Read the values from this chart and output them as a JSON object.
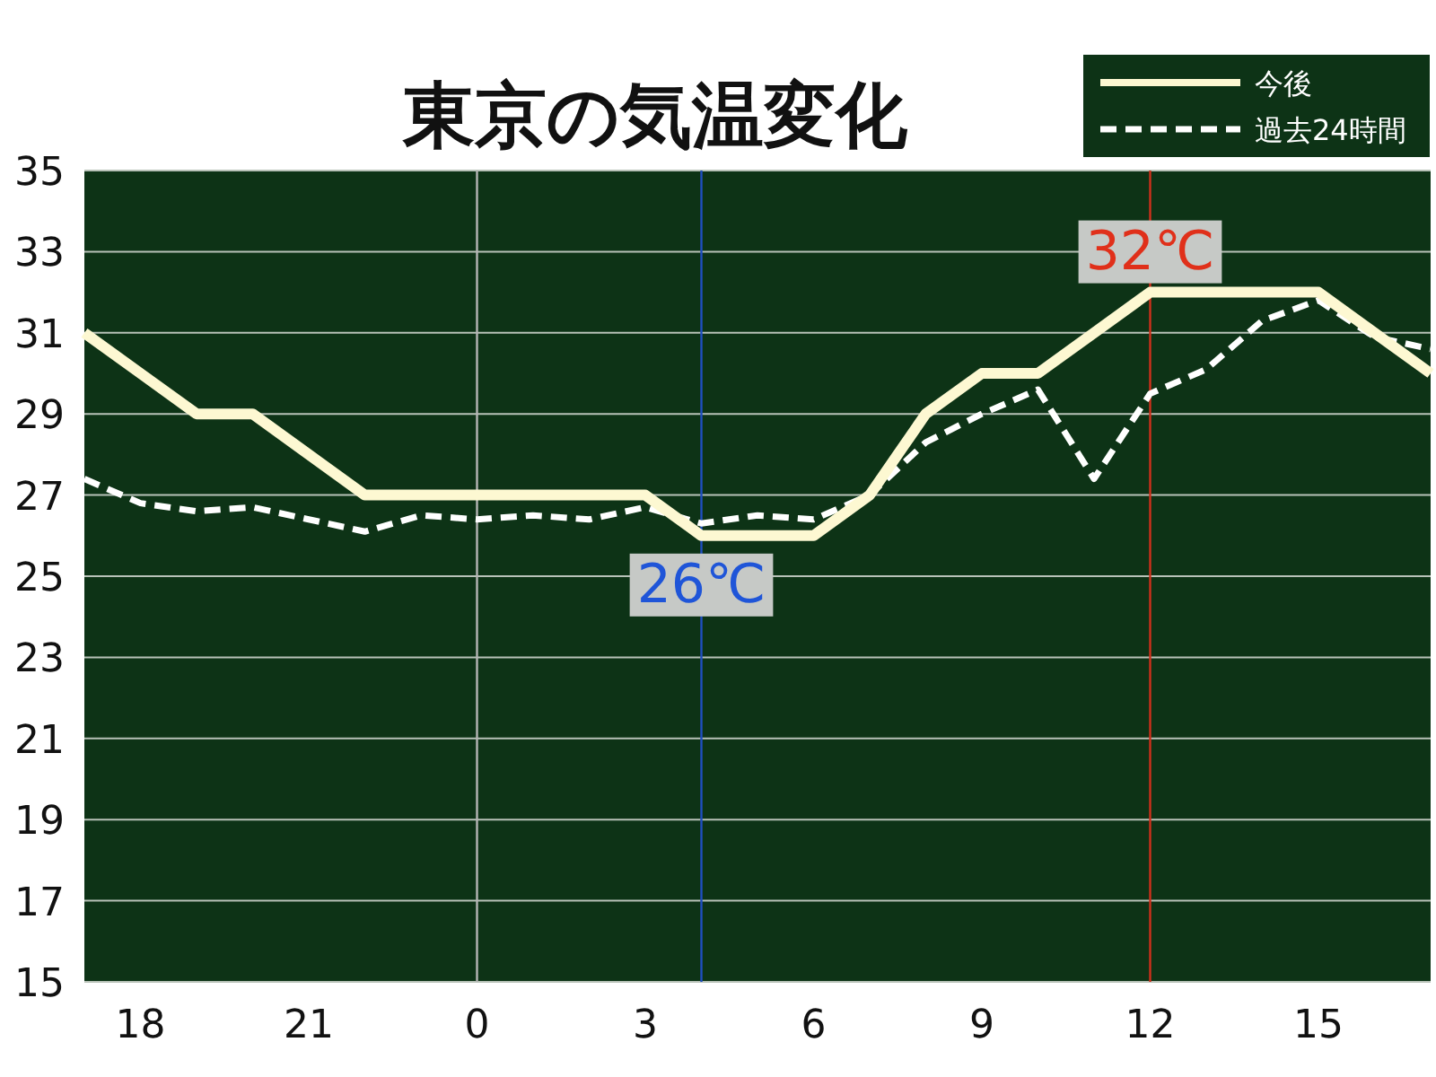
{
  "chart_data": {
    "type": "line",
    "title": "東京の気温変化",
    "categories": [
      null,
      "18",
      null,
      null,
      "21",
      null,
      null,
      "0",
      null,
      null,
      "3",
      null,
      null,
      "6",
      null,
      null,
      "9",
      null,
      null,
      "12",
      null,
      null,
      "15",
      null,
      null
    ],
    "series": [
      {
        "name": "今後",
        "color": "#fdf8d2",
        "line_style": "solid",
        "values": [
          31,
          30,
          29,
          29,
          28,
          27,
          27,
          27,
          27,
          27,
          27,
          26,
          26,
          26,
          27,
          29,
          30,
          30,
          31,
          32,
          32,
          32,
          32,
          31,
          30
        ]
      },
      {
        "name": "過去24時間",
        "color": "#ffffff",
        "line_style": "dashed",
        "values": [
          27.4,
          26.8,
          26.6,
          26.7,
          26.4,
          26.1,
          26.5,
          26.4,
          26.5,
          26.4,
          26.7,
          26.3,
          26.5,
          26.4,
          27.0,
          28.3,
          29.0,
          29.6,
          27.4,
          29.5,
          30.1,
          31.3,
          31.8,
          30.9,
          30.6
        ]
      }
    ],
    "ylim": [
      15,
      35
    ],
    "yticks": [
      15,
      17,
      19,
      21,
      23,
      25,
      27,
      29,
      31,
      33,
      35
    ],
    "grid": "y",
    "legend": "top right",
    "ref_lines": [
      {
        "axis": "x",
        "value": "0",
        "color": "#b5b5b5"
      }
    ],
    "annotations": [
      {
        "text": "26℃",
        "y": 26
      },
      {
        "text": "32℃",
        "x": "12",
        "y": 32
      }
    ]
  }
}
